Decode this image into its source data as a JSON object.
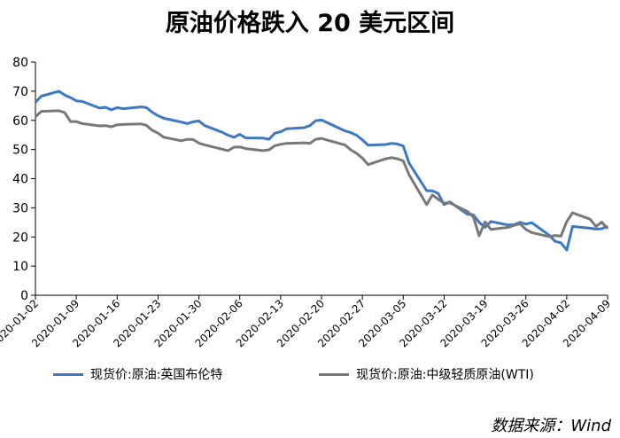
{
  "chart_data": {
    "type": "line",
    "title": "原油价格跌入 20 美元区间",
    "xlabel": "",
    "ylabel": "",
    "ylim": [
      0,
      80
    ],
    "yticks": [
      0,
      10,
      20,
      30,
      40,
      50,
      60,
      70,
      80
    ],
    "grid": false,
    "legend_position": "bottom",
    "x_tick_labels": [
      "2020-01-02",
      "2020-01-09",
      "2020-01-16",
      "2020-01-23",
      "2020-01-30",
      "2020-02-06",
      "2020-02-13",
      "2020-02-20",
      "2020-02-27",
      "2020-03-05",
      "2020-03-12",
      "2020-03-19",
      "2020-03-26",
      "2020-04-02",
      "2020-04-09"
    ],
    "x": [
      "2020-01-02",
      "2020-01-03",
      "2020-01-06",
      "2020-01-07",
      "2020-01-08",
      "2020-01-09",
      "2020-01-10",
      "2020-01-13",
      "2020-01-14",
      "2020-01-15",
      "2020-01-16",
      "2020-01-17",
      "2020-01-20",
      "2020-01-21",
      "2020-01-22",
      "2020-01-23",
      "2020-01-24",
      "2020-01-27",
      "2020-01-28",
      "2020-01-29",
      "2020-01-30",
      "2020-01-31",
      "2020-02-03",
      "2020-02-04",
      "2020-02-05",
      "2020-02-06",
      "2020-02-07",
      "2020-02-10",
      "2020-02-11",
      "2020-02-12",
      "2020-02-13",
      "2020-02-14",
      "2020-02-17",
      "2020-02-18",
      "2020-02-19",
      "2020-02-20",
      "2020-02-21",
      "2020-02-24",
      "2020-02-25",
      "2020-02-26",
      "2020-02-27",
      "2020-02-28",
      "2020-03-02",
      "2020-03-03",
      "2020-03-04",
      "2020-03-05",
      "2020-03-06",
      "2020-03-09",
      "2020-03-10",
      "2020-03-11",
      "2020-03-12",
      "2020-03-13",
      "2020-03-16",
      "2020-03-17",
      "2020-03-18",
      "2020-03-19",
      "2020-03-20",
      "2020-03-23",
      "2020-03-24",
      "2020-03-25",
      "2020-03-26",
      "2020-03-27",
      "2020-03-30",
      "2020-03-31",
      "2020-04-01",
      "2020-04-02",
      "2020-04-03",
      "2020-04-06",
      "2020-04-07",
      "2020-04-08",
      "2020-04-09"
    ],
    "series": [
      {
        "name": "现货价:原油:英国布伦特",
        "color": "#3e78c2",
        "values": [
          66.2,
          68.3,
          70.0,
          68.7,
          67.8,
          66.7,
          66.5,
          64.2,
          64.5,
          63.6,
          64.4,
          64.0,
          64.6,
          64.4,
          62.8,
          61.6,
          60.7,
          59.4,
          58.9,
          59.5,
          59.8,
          58.2,
          55.9,
          54.9,
          54.2,
          55.2,
          54.0,
          53.9,
          53.5,
          55.6,
          56.1,
          57.1,
          57.5,
          58.2,
          59.9,
          60.1,
          59.2,
          56.4,
          55.8,
          54.9,
          53.3,
          51.5,
          51.7,
          52.1,
          51.9,
          51.2,
          45.3,
          35.9,
          35.8,
          34.9,
          31.1,
          32.0,
          27.8,
          27.6,
          25.0,
          23.3,
          25.3,
          24.1,
          24.2,
          25.0,
          24.4,
          24.9,
          20.6,
          18.5,
          18.0,
          15.5,
          23.6,
          23.0,
          22.7,
          22.8,
          23.8
        ]
      },
      {
        "name": "现货价:原油:中级轻质原油(WTI)",
        "color": "#787878",
        "values": [
          61.2,
          63.1,
          63.3,
          62.7,
          59.6,
          59.6,
          58.9,
          58.1,
          58.2,
          57.8,
          58.5,
          58.6,
          58.8,
          58.3,
          56.6,
          55.6,
          54.2,
          53.0,
          53.5,
          53.4,
          52.2,
          51.6,
          50.1,
          49.6,
          50.8,
          50.9,
          50.3,
          49.6,
          49.9,
          51.3,
          51.8,
          52.1,
          52.3,
          52.1,
          53.5,
          53.8,
          53.2,
          51.6,
          49.9,
          48.7,
          47.1,
          44.8,
          46.8,
          47.2,
          46.8,
          46.1,
          41.3,
          31.1,
          34.4,
          32.9,
          31.6,
          31.7,
          28.7,
          26.9,
          20.4,
          25.2,
          22.6,
          23.3,
          24.0,
          24.5,
          22.6,
          21.5,
          20.1,
          20.5,
          20.3,
          25.3,
          28.3,
          26.1,
          23.6,
          25.1,
          22.8
        ]
      }
    ]
  },
  "source": "数据来源：Wind"
}
